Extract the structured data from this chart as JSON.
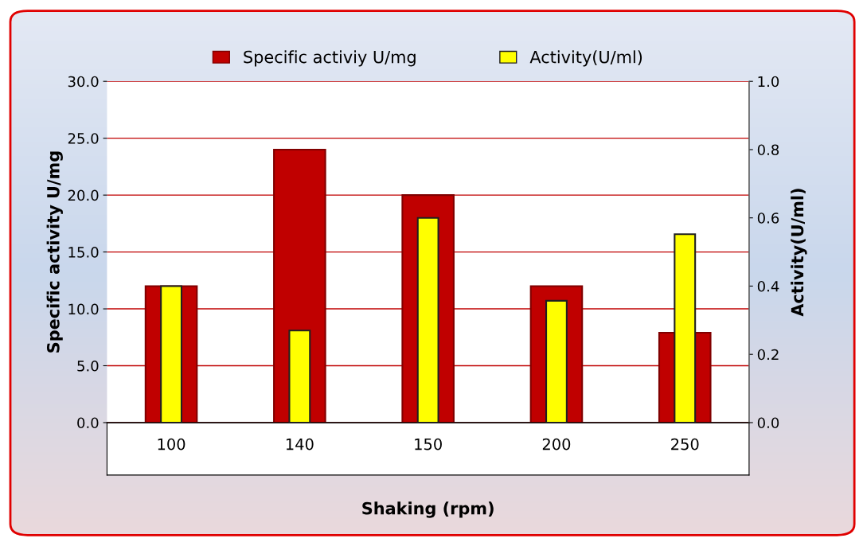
{
  "chart_data": {
    "type": "bar",
    "xlabel": "Shaking (rpm)",
    "ylabel": "Specific activity U/mg",
    "y2label": "Activity(U/ml)",
    "categories": [
      "100",
      "140",
      "150",
      "200",
      "250"
    ],
    "series": [
      {
        "name": "Specific activiy U/mg",
        "color": "#c00000",
        "values": [
          12,
          24,
          20,
          12,
          7.9
        ]
      },
      {
        "name": "Activity(U/ml)",
        "color": "#ffff00",
        "values": [
          0.4,
          0.27,
          0.6,
          0.357,
          0.552
        ],
        "axis": "y2"
      }
    ],
    "ylim": [
      0,
      30
    ],
    "yticks": [
      {
        "value": 0,
        "label": "0.0"
      },
      {
        "value": 5,
        "label": "5.0"
      },
      {
        "value": 10,
        "label": "10.0"
      },
      {
        "value": 15,
        "label": "15.0"
      },
      {
        "value": 20,
        "label": "20.0"
      },
      {
        "value": 25,
        "label": "25.0"
      },
      {
        "value": 30,
        "label": "30.0"
      }
    ],
    "y2lim": [
      0,
      1
    ],
    "y2ticks": [
      {
        "value": 0,
        "label": "0.0"
      },
      {
        "value": 0.2,
        "label": "0.2"
      },
      {
        "value": 0.4,
        "label": "0.4"
      },
      {
        "value": 0.6,
        "label": "0.6"
      },
      {
        "value": 0.8,
        "label": "0.8"
      },
      {
        "value": 1,
        "label": "1.0"
      }
    ],
    "grid": "y",
    "legend": "top"
  }
}
